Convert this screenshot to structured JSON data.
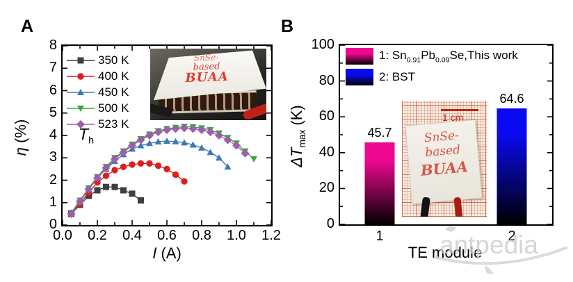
{
  "panel_a": {
    "panel_label": "A",
    "xlabel_parts": [
      {
        "t": "I",
        "i": true
      },
      {
        "t": " (A)"
      }
    ],
    "ylabel_parts": [
      {
        "t": "η",
        "i": true
      },
      {
        "t": " (%)"
      }
    ],
    "annotation": {
      "text": "T",
      "sub": "h"
    },
    "inset": {
      "line1": "SnSe-",
      "line2": "based",
      "line3": "BUAA"
    }
  },
  "panel_b": {
    "panel_label": "B",
    "xlabel": "TE module",
    "ylabel_parts": [
      {
        "t": "ΔT",
        "i": true
      },
      {
        "t": "max",
        "sub": true
      },
      {
        "t": " (K)"
      }
    ],
    "legend": [
      {
        "color": "#ee0890",
        "parts": [
          {
            "t": "1: Sn"
          },
          {
            "t": "0.91",
            "sub": true
          },
          {
            "t": "Pb"
          },
          {
            "t": "0.09",
            "sub": true
          },
          {
            "t": "Se,This work"
          }
        ]
      },
      {
        "color": "#0a0af0",
        "parts": [
          {
            "t": "2: BST"
          }
        ]
      }
    ],
    "inset": {
      "scale_label": "1 cm",
      "line1": "SnSe-",
      "line2": "based",
      "line3": "BUAA"
    }
  },
  "watermark": "antpedia",
  "chart_data": [
    {
      "type": "line",
      "title": "",
      "xlabel": "I (A)",
      "ylabel": "η (%)",
      "xlim": [
        0,
        1.2
      ],
      "ylim": [
        0,
        8
      ],
      "xticks": [
        0.0,
        0.2,
        0.4,
        0.6,
        0.8,
        1.0,
        1.2
      ],
      "xtick_labels": [
        "0.0",
        "0.2",
        "0.4",
        "0.6",
        "0.8",
        "1.0",
        "1.2"
      ],
      "xticks_minor": [
        0.1,
        0.3,
        0.5,
        0.7,
        0.9,
        1.1
      ],
      "yticks": [
        0,
        1,
        2,
        3,
        4,
        5,
        6,
        7,
        8
      ],
      "ytick_labels": [
        "0",
        "1",
        "2",
        "3",
        "4",
        "5",
        "6",
        "7",
        "8"
      ],
      "legend_position": "top-left-inside",
      "grid": false,
      "annotation": "T_h",
      "series": [
        {
          "name": "350 K",
          "color": "#3f3f3f",
          "marker": "square",
          "x": [
            0.05,
            0.1,
            0.15,
            0.2,
            0.25,
            0.3,
            0.35,
            0.4,
            0.45
          ],
          "y": [
            0.5,
            0.9,
            1.3,
            1.55,
            1.7,
            1.7,
            1.55,
            1.4,
            1.1
          ]
        },
        {
          "name": "400 K",
          "color": "#dd1f1f",
          "marker": "circle",
          "x": [
            0.05,
            0.1,
            0.15,
            0.2,
            0.25,
            0.3,
            0.35,
            0.4,
            0.45,
            0.5,
            0.55,
            0.6,
            0.65,
            0.7
          ],
          "y": [
            0.5,
            0.95,
            1.45,
            1.9,
            2.2,
            2.45,
            2.6,
            2.7,
            2.75,
            2.75,
            2.65,
            2.5,
            2.25,
            1.95
          ]
        },
        {
          "name": "450 K",
          "color": "#3c79b5",
          "marker": "triangle-up",
          "x": [
            0.05,
            0.1,
            0.15,
            0.2,
            0.25,
            0.3,
            0.35,
            0.4,
            0.45,
            0.5,
            0.55,
            0.6,
            0.65,
            0.7,
            0.75,
            0.8,
            0.85,
            0.9,
            0.95
          ],
          "y": [
            0.55,
            1.05,
            1.6,
            2.1,
            2.5,
            2.85,
            3.15,
            3.4,
            3.55,
            3.65,
            3.72,
            3.75,
            3.73,
            3.68,
            3.58,
            3.45,
            3.25,
            3.0,
            2.6
          ]
        },
        {
          "name": "500 K",
          "color": "#39a839",
          "marker": "triangle-down",
          "x": [
            0.05,
            0.1,
            0.15,
            0.2,
            0.25,
            0.3,
            0.35,
            0.4,
            0.45,
            0.5,
            0.55,
            0.6,
            0.65,
            0.7,
            0.75,
            0.8,
            0.85,
            0.9,
            0.95,
            1.0,
            1.05,
            1.1
          ],
          "y": [
            0.55,
            1.1,
            1.65,
            2.15,
            2.6,
            3.0,
            3.3,
            3.6,
            3.85,
            4.05,
            4.2,
            4.3,
            4.35,
            4.4,
            4.38,
            4.33,
            4.25,
            4.1,
            3.9,
            3.65,
            3.3,
            2.95
          ]
        },
        {
          "name": "523 K",
          "color": "#9e5dae",
          "marker": "diamond",
          "x": [
            0.05,
            0.1,
            0.15,
            0.2,
            0.25,
            0.3,
            0.35,
            0.4,
            0.45,
            0.5,
            0.55,
            0.6,
            0.65,
            0.7,
            0.75,
            0.8,
            0.85,
            0.9,
            0.95,
            1.0,
            1.05
          ],
          "y": [
            0.5,
            1.05,
            1.6,
            2.1,
            2.55,
            2.95,
            3.25,
            3.55,
            3.8,
            4.0,
            4.15,
            4.25,
            4.3,
            4.33,
            4.3,
            4.25,
            4.15,
            4.0,
            3.8,
            3.55,
            3.2
          ]
        }
      ]
    },
    {
      "type": "bar",
      "title": "",
      "categories": [
        "1",
        "2"
      ],
      "values": [
        45.7,
        64.6
      ],
      "value_labels": [
        "45.7",
        "64.6"
      ],
      "colors": [
        "#ee0890",
        "#0a0af0"
      ],
      "legend_labels": [
        "1: Sn0.91Pb0.09Se,This work",
        "2: BST"
      ],
      "xlabel": "TE module",
      "ylabel": "ΔT_max (K)",
      "ylim": [
        0,
        100
      ],
      "yticks": [
        0,
        20,
        40,
        60,
        80,
        100
      ],
      "ytick_labels": [
        "0",
        "20",
        "40",
        "60",
        "80",
        "100"
      ],
      "yticks_minor": [
        10,
        30,
        50,
        70,
        90
      ],
      "grid": false,
      "legend_position": "top-inside"
    }
  ]
}
